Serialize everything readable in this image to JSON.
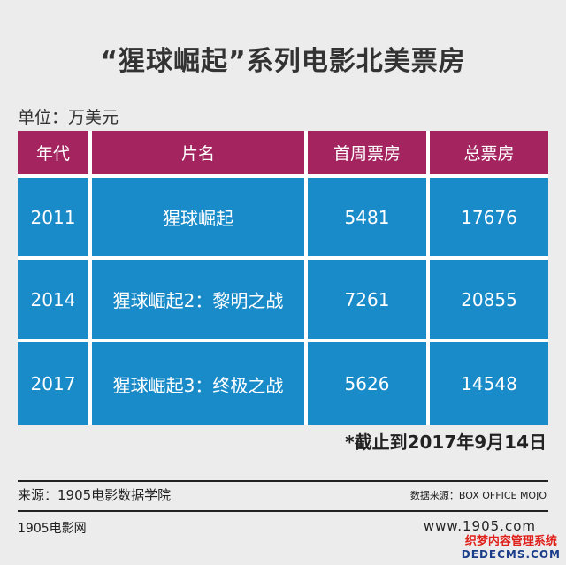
{
  "title": "“猩球崛起”系列电影北美票房",
  "unit": "单位：万美元",
  "table": {
    "headers": [
      "年代",
      "片名",
      "首周票房",
      "总票房"
    ],
    "rows": [
      [
        "2011",
        "猩球崛起",
        "5481",
        "17676"
      ],
      [
        "2014",
        "猩球崛起2：黎明之战",
        "7261",
        "20855"
      ],
      [
        "2017",
        "猩球崛起3：终极之战",
        "5626",
        "14548"
      ]
    ],
    "colors": {
      "header": "#a3245e",
      "body": "#1a8bc9"
    }
  },
  "note": "*截止到2017年9月14日",
  "source_left": "来源：1905电影数据学院",
  "source_right": "数据来源：BOX OFFICE MOJO",
  "brand_left": "1905电影网",
  "brand_right": "www.1905.com",
  "watermark": {
    "line1": "织梦内容管理系统",
    "line2": "DEDECMS.COM"
  }
}
